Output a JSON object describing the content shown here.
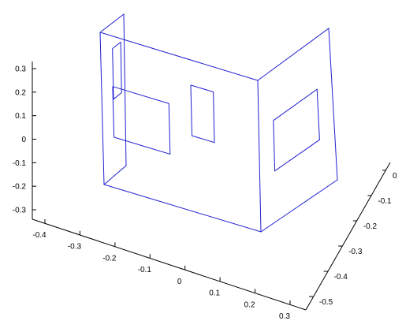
{
  "chart_data": {
    "type": "line",
    "title": "",
    "xlabel": "",
    "ylabel": "",
    "zlabel": "",
    "grid": false,
    "projection": "3d-perspective",
    "xlim": [
      -0.45,
      0.35
    ],
    "ylim": [
      -0.55,
      0.05
    ],
    "zlim": [
      -0.35,
      0.35
    ],
    "x_ticks": [
      "-0.4",
      "-0.3",
      "-0.2",
      "-0.1",
      "0",
      "0.1",
      "0.2",
      "0.3"
    ],
    "y_ticks": [
      "0",
      "-0.1",
      "-0.2",
      "-0.3",
      "-0.4",
      "-0.5"
    ],
    "z_ticks": [
      "0.3",
      "0.2",
      "0.1",
      "0",
      "-0.1",
      "-0.2",
      "-0.3"
    ],
    "line_color": "#1f1fd0",
    "series": [
      {
        "role": "front wall",
        "points": [
          [
            -0.4,
            -0.05,
            0.3
          ],
          [
            0.3,
            -0.05,
            0.3
          ],
          [
            0.3,
            -0.05,
            -0.3
          ],
          [
            -0.4,
            -0.05,
            -0.3
          ],
          [
            -0.4,
            -0.05,
            0.3
          ]
        ]
      },
      {
        "role": "right wall",
        "points": [
          [
            0.3,
            -0.05,
            0.3
          ],
          [
            0.3,
            -0.55,
            0.3
          ],
          [
            0.3,
            -0.55,
            -0.3
          ],
          [
            0.3,
            -0.05,
            -0.3
          ]
        ]
      },
      {
        "role": "left wall",
        "points": [
          [
            -0.4,
            -0.05,
            0.3
          ],
          [
            -0.4,
            -0.25,
            0.3
          ],
          [
            -0.4,
            -0.25,
            -0.3
          ],
          [
            -0.4,
            -0.05,
            -0.3
          ]
        ]
      },
      {
        "role": "left wall window",
        "points": [
          [
            -0.4,
            -0.15,
            0.2
          ],
          [
            -0.4,
            -0.22,
            0.2
          ],
          [
            -0.4,
            -0.22,
            0.0
          ],
          [
            -0.4,
            -0.15,
            0.0
          ],
          [
            -0.4,
            -0.15,
            0.2
          ]
        ]
      },
      {
        "role": "front wall large window",
        "points": [
          [
            -0.35,
            -0.05,
            0.1
          ],
          [
            -0.1,
            -0.05,
            0.1
          ],
          [
            -0.1,
            -0.05,
            -0.1
          ],
          [
            -0.35,
            -0.05,
            -0.1
          ],
          [
            -0.35,
            -0.05,
            0.1
          ]
        ]
      },
      {
        "role": "front wall small window",
        "points": [
          [
            0.0,
            -0.05,
            0.2
          ],
          [
            0.1,
            -0.05,
            0.2
          ],
          [
            0.1,
            -0.05,
            0.0
          ],
          [
            0.0,
            -0.05,
            0.0
          ],
          [
            0.0,
            -0.05,
            0.2
          ]
        ]
      },
      {
        "role": "right wall window",
        "points": [
          [
            0.3,
            -0.15,
            0.1
          ],
          [
            0.3,
            -0.45,
            0.1
          ],
          [
            0.3,
            -0.45,
            -0.1
          ],
          [
            0.3,
            -0.15,
            -0.1
          ],
          [
            0.3,
            -0.15,
            0.1
          ]
        ]
      }
    ]
  }
}
